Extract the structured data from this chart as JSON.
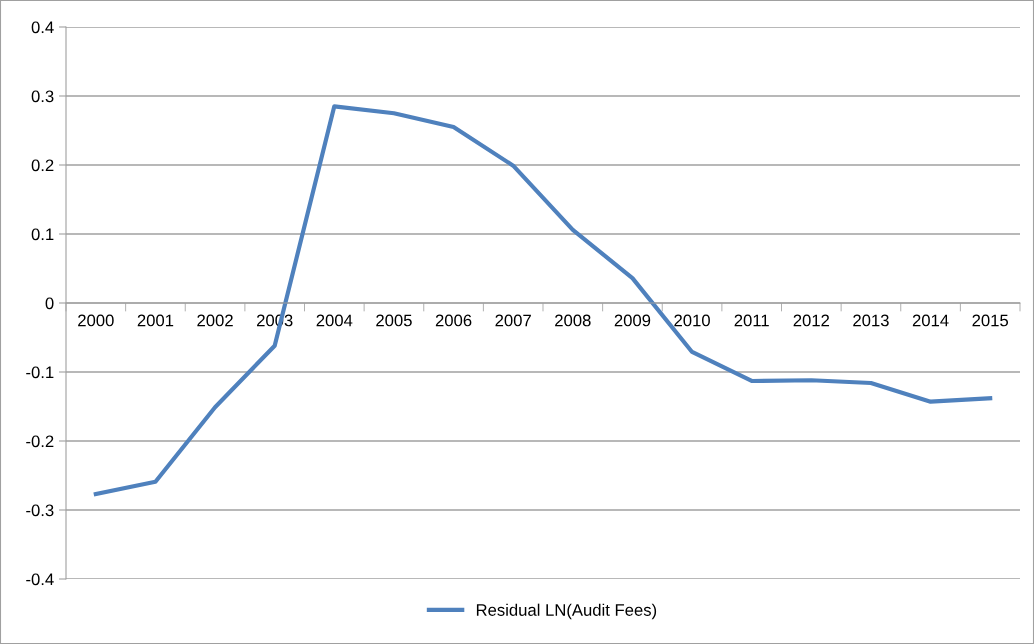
{
  "chart_data": {
    "type": "line",
    "categories": [
      "2000",
      "2001",
      "2002",
      "2003",
      "2004",
      "2005",
      "2006",
      "2007",
      "2008",
      "2009",
      "2010",
      "2011",
      "2012",
      "2013",
      "2014",
      "2015"
    ],
    "series": [
      {
        "name": "Residual LN(Audit Fees)",
        "color": "#4f81bd",
        "values": [
          -0.277,
          -0.259,
          -0.151,
          -0.062,
          0.285,
          0.275,
          0.255,
          0.199,
          0.106,
          0.036,
          -0.071,
          -0.113,
          -0.112,
          -0.116,
          -0.143,
          -0.138
        ]
      }
    ],
    "ylim": [
      -0.4,
      0.4
    ],
    "yticks": [
      {
        "value": -0.4,
        "label": "-0.4"
      },
      {
        "value": -0.3,
        "label": "-0.3"
      },
      {
        "value": -0.2,
        "label": "-0.2"
      },
      {
        "value": -0.1,
        "label": "-0.1"
      },
      0,
      0.1,
      0.2,
      0.3,
      0.4
    ],
    "grid": "y",
    "legend": "bottom",
    "marker": "none",
    "line_style": "solid"
  }
}
